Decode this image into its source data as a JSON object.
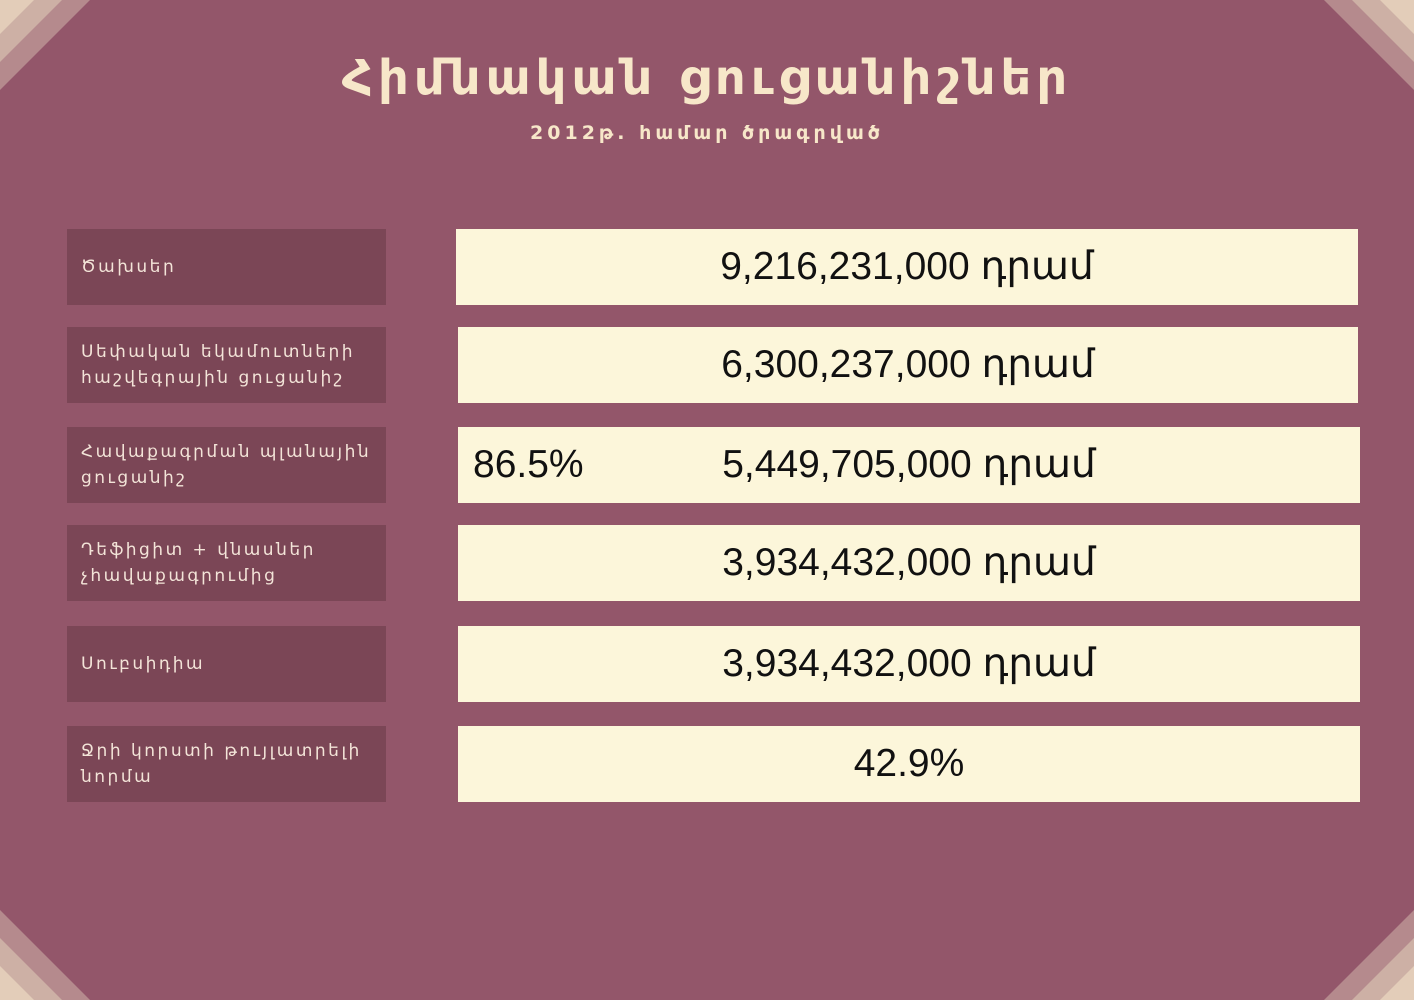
{
  "header": {
    "title": "Հիմնական ցուցանիշներ",
    "subtitle": "2012թ. համար ծրագրված"
  },
  "rows": [
    {
      "label": "Ծախսեր",
      "value": "9,216,231,000 դրամ"
    },
    {
      "label": "Սեփական եկամուտների հաշվեգրային ցուցանիշ",
      "value": "6,300,237,000 դրամ"
    },
    {
      "label": "Հավաքագրման պլանային ցուցանիշ",
      "value": "5,449,705,000 դրամ",
      "percent": "86.5%"
    },
    {
      "label": "Դեֆիցիտ + վնասներ չհավաքագրումից",
      "value": "3,934,432,000 դրամ"
    },
    {
      "label": "Սուբսիդիա",
      "value": "3,934,432,000 դրամ"
    },
    {
      "label": "Ջրի կորստի թույլատրելի նորմա",
      "value": "42.9%"
    }
  ],
  "colors": {
    "background": "#93566a",
    "label_box": "#7b4656",
    "value_box": "#fcf6da",
    "title_text": "#f7e7c9"
  }
}
